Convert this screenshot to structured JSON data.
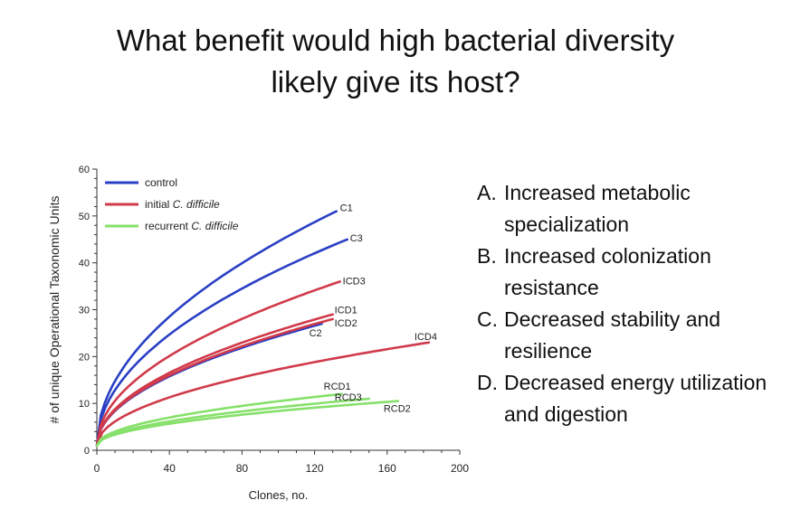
{
  "slide": {
    "title_line1": "What benefit would high bacterial diversity",
    "title_line2": "likely give its host?"
  },
  "answers": [
    {
      "letter": "A.",
      "text": "Increased metabolic specialization"
    },
    {
      "letter": "B.",
      "text": "Increased colonization resistance"
    },
    {
      "letter": "C.",
      "text": "Decreased stability and resilience"
    },
    {
      "letter": "D.",
      "text": "Decreased energy utilization and digestion"
    }
  ],
  "chart_data": {
    "type": "line",
    "xlabel": "Clones, no.",
    "ylabel": "# of unique Operational Taxonomic Units",
    "xlim": [
      0,
      200
    ],
    "ylim": [
      0,
      60
    ],
    "xticks": [
      0,
      40,
      80,
      120,
      160,
      200
    ],
    "yticks": [
      0,
      10,
      20,
      30,
      40,
      50,
      60
    ],
    "grid": false,
    "legend": {
      "placement": "top-left",
      "entries": [
        {
          "group": "control",
          "label": "control",
          "color": "#2a3fc4"
        },
        {
          "group": "initial",
          "label_prefix": "initial ",
          "label_italic": "C. difficile",
          "color": "#d03a4a"
        },
        {
          "group": "recurrent",
          "label_prefix": "recurrent ",
          "label_italic": "C. difficile",
          "color": "#86e06a"
        }
      ]
    },
    "series": [
      {
        "name": "C1",
        "group": "control",
        "x_end": 132,
        "y_end": 51
      },
      {
        "name": "C3",
        "group": "control",
        "x_end": 138,
        "y_end": 45
      },
      {
        "name": "C2",
        "group": "control",
        "x_end": 124,
        "y_end": 27
      },
      {
        "name": "ICD3",
        "group": "initial",
        "x_end": 134,
        "y_end": 36
      },
      {
        "name": "ICD1",
        "group": "initial",
        "x_end": 130,
        "y_end": 29
      },
      {
        "name": "ICD2",
        "group": "initial",
        "x_end": 130,
        "y_end": 28
      },
      {
        "name": "ICD4",
        "group": "initial",
        "x_end": 183,
        "y_end": 23
      },
      {
        "name": "RCD1",
        "group": "recurrent",
        "x_end": 135,
        "y_end": 12
      },
      {
        "name": "RCD3",
        "group": "recurrent",
        "x_end": 150,
        "y_end": 11
      },
      {
        "name": "RCD2",
        "group": "recurrent",
        "x_end": 166,
        "y_end": 10.5
      }
    ]
  }
}
